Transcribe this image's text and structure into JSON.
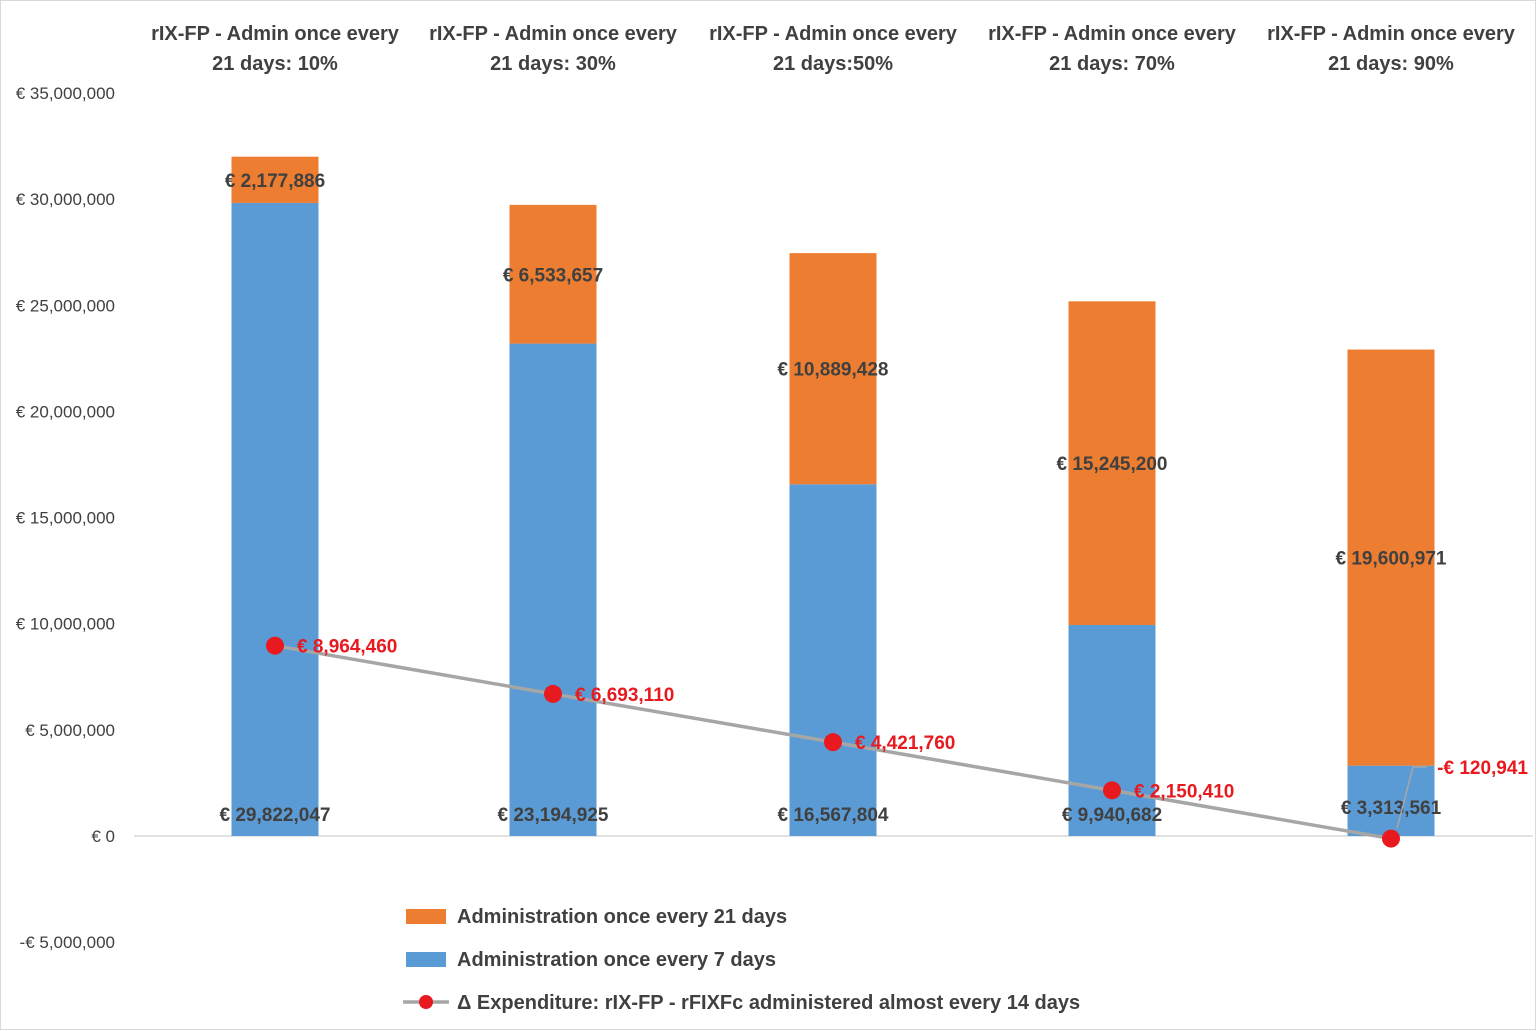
{
  "colors": {
    "orange": "#ed7d31",
    "blue": "#5b9bd5",
    "red": "#e8191f",
    "line": "#a6a6a6",
    "text": "#404040"
  },
  "chart_data": {
    "type": "bar",
    "stacked": true,
    "ylim": [
      -5000000,
      35000000
    ],
    "yticks": [
      {
        "value": 35000000,
        "label": "€ 35,000,000"
      },
      {
        "value": 30000000,
        "label": "€ 30,000,000"
      },
      {
        "value": 25000000,
        "label": "€ 25,000,000"
      },
      {
        "value": 20000000,
        "label": "€ 20,000,000"
      },
      {
        "value": 15000000,
        "label": "€ 15,000,000"
      },
      {
        "value": 10000000,
        "label": "€ 10,000,000"
      },
      {
        "value": 5000000,
        "label": "€ 5,000,000"
      },
      {
        "value": 0,
        "label": "€ 0"
      },
      {
        "value": -5000000,
        "label": "-€ 5,000,000"
      }
    ],
    "categories": [
      [
        "rIX-FP - Admin once every",
        "21 days: 10%"
      ],
      [
        "rIX-FP - Admin once every",
        "21 days: 30%"
      ],
      [
        "rIX-FP - Admin once every",
        "21 days:50%"
      ],
      [
        "rIX-FP - Admin once every",
        "21 days: 70%"
      ],
      [
        "rIX-FP - Admin once every",
        "21 days: 90%"
      ]
    ],
    "series": [
      {
        "name": "Administration once every 7 days",
        "color": "#5b9bd5",
        "values": [
          29822047,
          23194925,
          16567804,
          9940682,
          3313561
        ],
        "labels": [
          "€ 29,822,047",
          "€ 23,194,925",
          "€ 16,567,804",
          "€ 9,940,682",
          "€ 3,313,561"
        ]
      },
      {
        "name": "Administration once every 21 days",
        "color": "#ed7d31",
        "values": [
          2177886,
          6533657,
          10889428,
          15245200,
          19600971
        ],
        "labels": [
          "€ 2,177,886",
          "€ 6,533,657",
          "€ 10,889,428",
          "€ 15,245,200",
          "€ 19,600,971"
        ]
      }
    ],
    "line_series": {
      "name": "Δ Expenditure: rIX-FP - rFIXFc administered almost every 14 days",
      "color": "#e8191f",
      "values": [
        8964460,
        6693110,
        4421760,
        2150410,
        -120941
      ],
      "labels": [
        "€ 8,964,460",
        "€ 6,693,110",
        "€ 4,421,760",
        "€ 2,150,410",
        "-€ 120,941"
      ]
    },
    "legend": [
      {
        "label": "Administration once every 21 days",
        "kind": "bar",
        "color": "#ed7d31"
      },
      {
        "label": "Administration once every 7 days",
        "kind": "bar",
        "color": "#5b9bd5"
      },
      {
        "label": "Δ Expenditure: rIX-FP - rFIXFc administered almost every 14 days",
        "kind": "line",
        "color": "#e8191f"
      }
    ]
  }
}
